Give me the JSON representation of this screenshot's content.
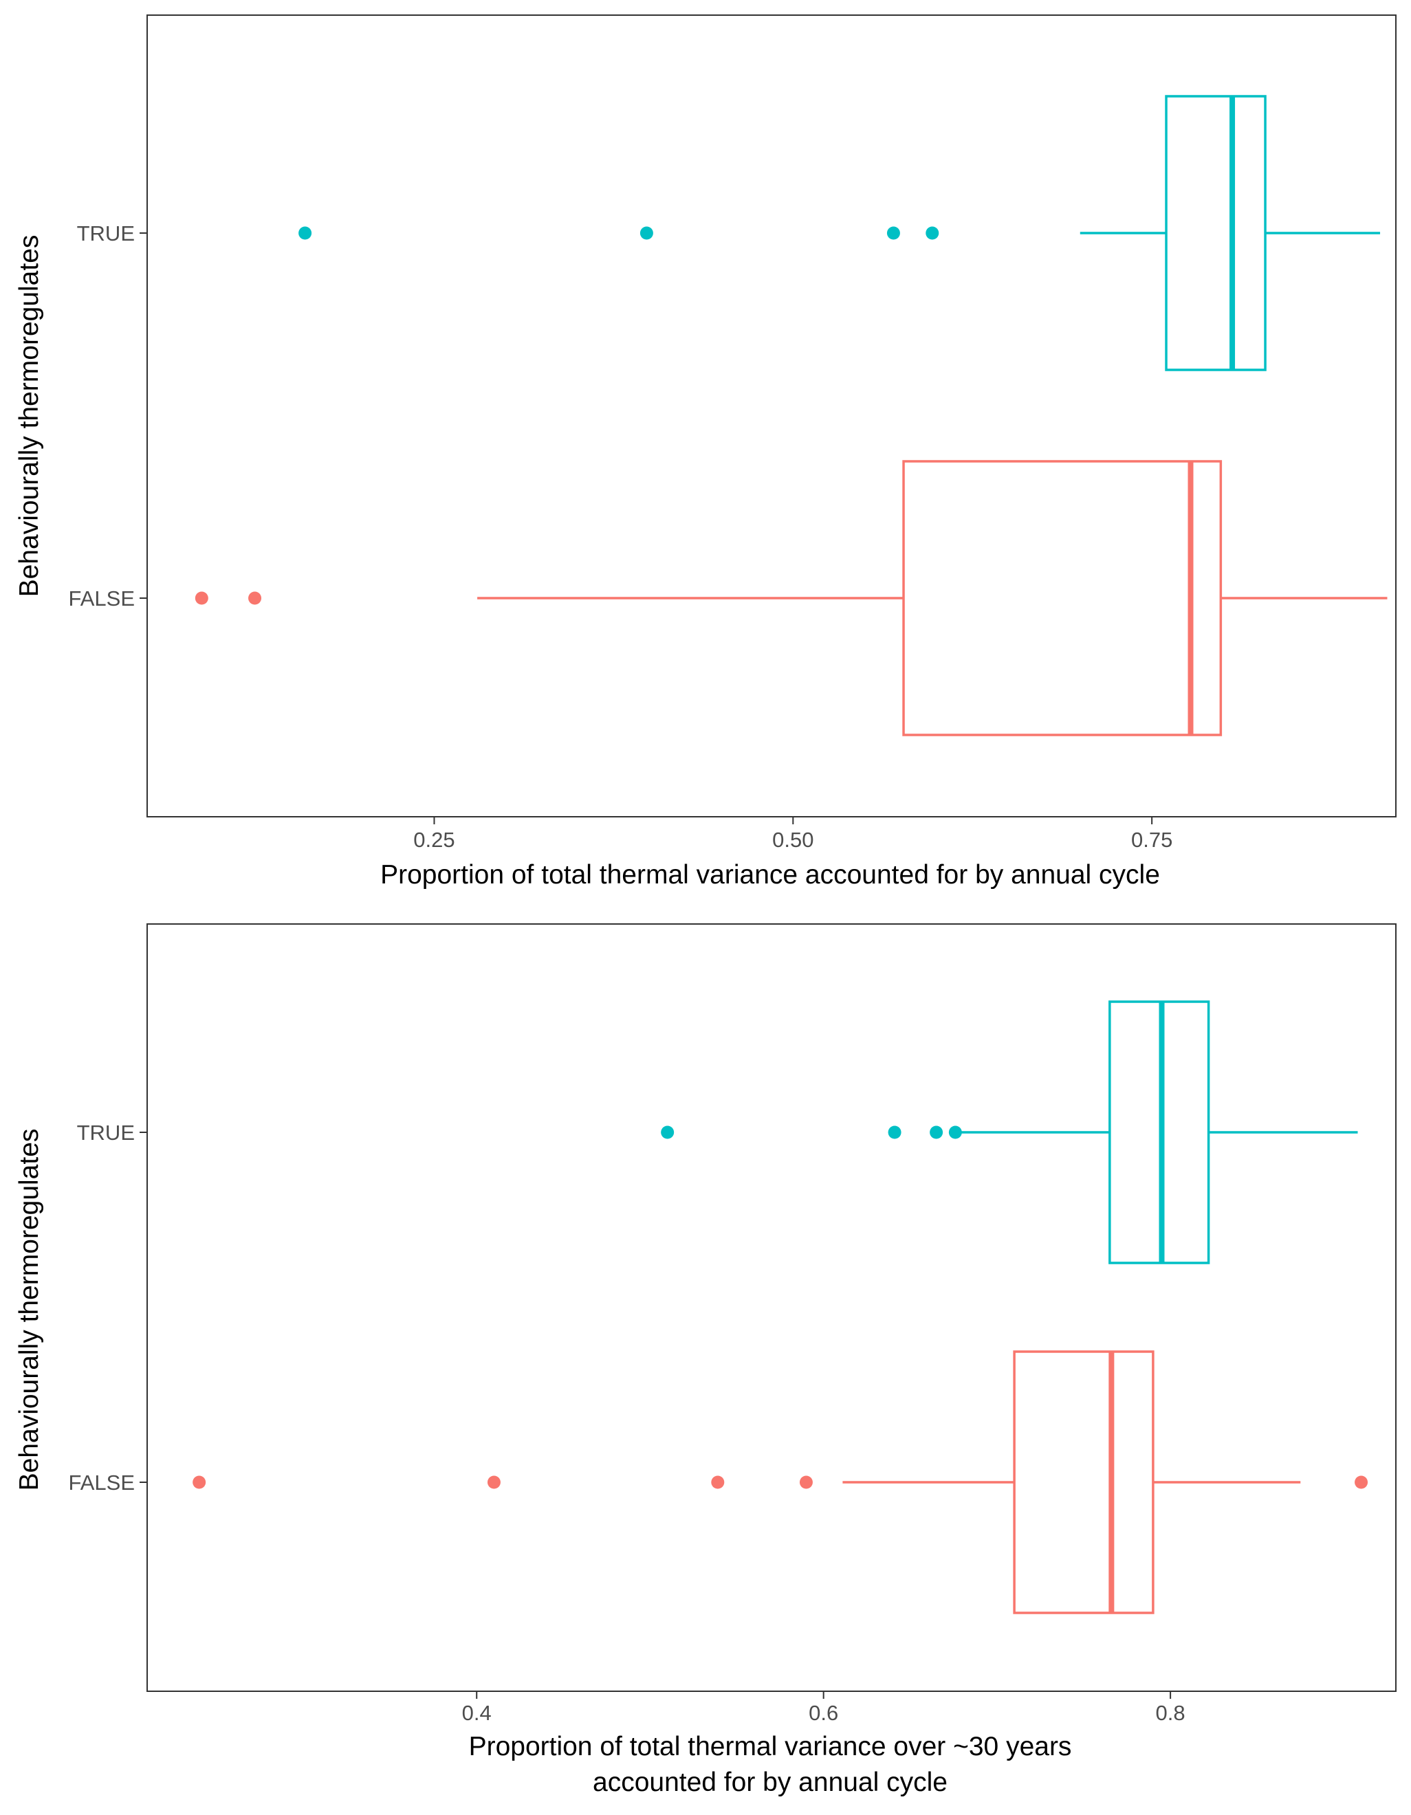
{
  "chart_data": [
    {
      "type": "boxplot",
      "orientation": "horizontal",
      "xlabel": [
        "Proportion of total thermal variance accounted for by annual cycle"
      ],
      "ylabel": "Behaviourally thermoregulates",
      "xlim": [
        0.05,
        0.92
      ],
      "x_ticks": [
        {
          "value": 0.25,
          "label": "0.25"
        },
        {
          "value": 0.5,
          "label": "0.50"
        },
        {
          "value": 0.75,
          "label": "0.75"
        }
      ],
      "grid": false,
      "legend": "none",
      "series": [
        {
          "name": "TRUE",
          "color": "#00BFC4",
          "whisker_low": 0.7,
          "q1": 0.76,
          "median": 0.806,
          "q3": 0.829,
          "whisker_high": 0.909,
          "outliers": [
            0.16,
            0.398,
            0.57,
            0.597
          ]
        },
        {
          "name": "FALSE",
          "color": "#F8766D",
          "whisker_low": 0.28,
          "q1": 0.577,
          "median": 0.777,
          "q3": 0.798,
          "whisker_high": 0.914,
          "outliers": [
            0.088,
            0.125
          ]
        }
      ]
    },
    {
      "type": "boxplot",
      "orientation": "horizontal",
      "xlabel": [
        "Proportion of total thermal variance over ~30 years",
        "accounted for by annual cycle"
      ],
      "ylabel": "Behaviourally thermoregulates",
      "xlim": [
        0.21,
        0.93
      ],
      "x_ticks": [
        {
          "value": 0.4,
          "label": "0.4"
        },
        {
          "value": 0.6,
          "label": "0.6"
        },
        {
          "value": 0.8,
          "label": "0.8"
        }
      ],
      "grid": false,
      "legend": "none",
      "series": [
        {
          "name": "TRUE",
          "color": "#00BFC4",
          "whisker_low": 0.678,
          "q1": 0.765,
          "median": 0.795,
          "q3": 0.822,
          "whisker_high": 0.908,
          "outliers": [
            0.51,
            0.641,
            0.665,
            0.676
          ]
        },
        {
          "name": "FALSE",
          "color": "#F8766D",
          "whisker_low": 0.611,
          "q1": 0.71,
          "median": 0.766,
          "q3": 0.79,
          "whisker_high": 0.875,
          "outliers": [
            0.24,
            0.41,
            0.539,
            0.59,
            0.91
          ]
        }
      ]
    }
  ]
}
